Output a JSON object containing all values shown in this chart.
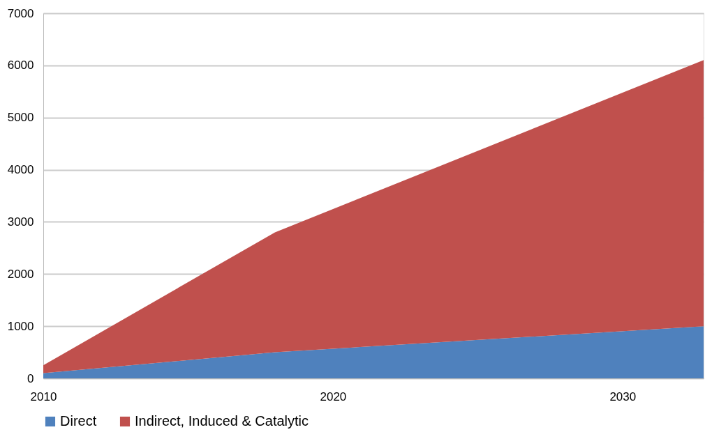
{
  "chart_data": {
    "type": "area",
    "stacked": true,
    "x": [
      2010,
      2018,
      2032.8
    ],
    "series": [
      {
        "name": "Direct",
        "color": "#4f81bd",
        "values": [
          100,
          500,
          1000
        ]
      },
      {
        "name": "Indirect, Induced & Catalytic",
        "color": "#c0504d",
        "values": [
          150,
          2300,
          5100
        ]
      }
    ],
    "xlim": [
      2010,
      2032.8
    ],
    "xticks": [
      2010,
      2020,
      2030
    ],
    "ylim": [
      0,
      7000
    ],
    "yticks": [
      0,
      1000,
      2000,
      3000,
      4000,
      5000,
      6000,
      7000
    ],
    "grid": "y",
    "legend": "bottom"
  }
}
